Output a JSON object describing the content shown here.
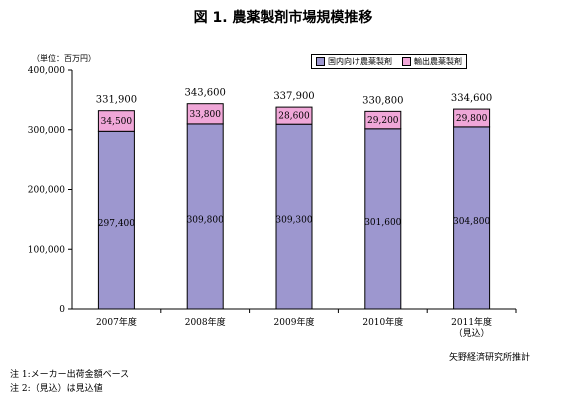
{
  "title": "図 1.  農薬製剤市場規模推移",
  "unit_label": "（単位：百万円）",
  "source": "矢野経済研究所推計",
  "notes": [
    "注 1:メーカー出荷金額ベース",
    "注 2:（見込）は見込値"
  ],
  "colors": {
    "domestic": "#9d97cf",
    "export": "#f0a7d8",
    "stroke": "#000000"
  },
  "chart_data": {
    "type": "bar",
    "stacked": true,
    "categories": [
      "2007年度",
      "2008年度",
      "2009年度",
      "2010年度",
      "2011年度"
    ],
    "category_sublabels": [
      "",
      "",
      "",
      "",
      "（見込）"
    ],
    "series": [
      {
        "name": "国内向け農薬製剤",
        "values": [
          297400,
          309800,
          309300,
          301600,
          304800
        ]
      },
      {
        "name": "輸出農薬製剤",
        "values": [
          34500,
          33800,
          28600,
          29200,
          29800
        ]
      }
    ],
    "totals": [
      331900,
      343600,
      337900,
      330800,
      334600
    ],
    "ylim": [
      0,
      400000
    ],
    "yticks": [
      0,
      100000,
      200000,
      300000,
      400000
    ],
    "ytick_labels": [
      "0",
      "100,000",
      "200,000",
      "300,000",
      "400,000"
    ],
    "value_labels": {
      "domestic": [
        "297,400",
        "309,800",
        "309,300",
        "301,600",
        "304,800"
      ],
      "export": [
        "34,500",
        "33,800",
        "28,600",
        "29,200",
        "29,800"
      ],
      "totals": [
        "331,900",
        "343,600",
        "337,900",
        "330,800",
        "334,600"
      ]
    },
    "legend_position": "top-right",
    "grid": false
  }
}
